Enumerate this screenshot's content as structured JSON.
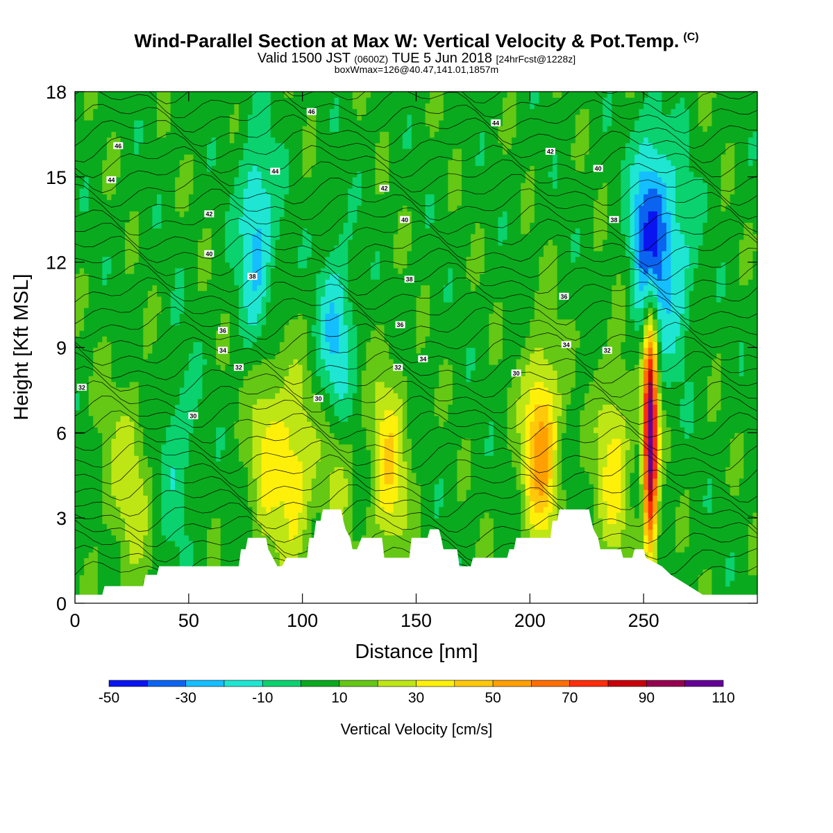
{
  "chart_data": {
    "type": "heatmap",
    "title": "Wind-Parallel Section at Max W: Vertical Velocity & Pot.Temp.",
    "title_mark": "(C)",
    "subtitle_valid": "Valid 1500 JST",
    "subtitle_utc": "(0600Z)",
    "subtitle_date": "TUE 5 Jun 2018",
    "subtitle_fcst": "[24hrFcst@1228z]",
    "subtitle_box": "boxWmax=126@40.47,141.01,1857m",
    "xlabel": "Distance [nm]",
    "ylabel": "Height [Kft MSL]",
    "xlim": [
      0,
      300
    ],
    "ylim": [
      0,
      18
    ],
    "x_ticks": [
      "0",
      "50",
      "100",
      "150",
      "200",
      "250"
    ],
    "y_ticks": [
      "0",
      "3",
      "6",
      "9",
      "12",
      "15",
      "18"
    ],
    "colorbar": {
      "label": "Vertical Velocity [cm/s]",
      "bounds": [
        -50,
        -40,
        -30,
        -20,
        -10,
        0,
        10,
        20,
        30,
        40,
        50,
        60,
        70,
        80,
        90,
        100,
        110
      ],
      "tick_labels": [
        "-50",
        "-30",
        "-10",
        "10",
        "30",
        "50",
        "70",
        "90",
        "110"
      ],
      "colors": [
        "#0a14f0",
        "#0a64f0",
        "#14beff",
        "#1ee6d2",
        "#0ad26e",
        "#0aaa1e",
        "#64c814",
        "#bee614",
        "#fff00a",
        "#ffc80a",
        "#ffa000",
        "#ff6e00",
        "#ff2d0a",
        "#c8000a",
        "#960050",
        "#640096"
      ]
    },
    "features": [
      {
        "x": 15,
        "z": 5.0,
        "w": 12
      },
      {
        "x": 25,
        "z": 4.0,
        "w": 25
      },
      {
        "x": 45,
        "z": 5.5,
        "w": -8
      },
      {
        "x": 85,
        "z": 5.5,
        "w": 32
      },
      {
        "x": 97,
        "z": 4.5,
        "w": 35
      },
      {
        "x": 115,
        "z": 5.5,
        "w": 28
      },
      {
        "x": 138,
        "z": 4.8,
        "w": 38
      },
      {
        "x": 205,
        "z": 5.5,
        "w": 55
      },
      {
        "x": 237,
        "z": 5.0,
        "w": 35
      },
      {
        "x": 253,
        "z": 6.0,
        "w": 110
      },
      {
        "x": 253,
        "z": 13.0,
        "w": -45
      },
      {
        "x": 115,
        "z": 8.8,
        "w": -28
      },
      {
        "x": 80,
        "z": 13.0,
        "w": -25
      },
      {
        "x": 265,
        "z": 12.0,
        "w": -15
      }
    ],
    "terrain": [
      [
        0,
        0.3
      ],
      [
        12,
        0.3
      ],
      [
        13,
        0.6
      ],
      [
        30,
        0.6
      ],
      [
        31,
        1.0
      ],
      [
        36,
        1.0
      ],
      [
        37,
        1.3
      ],
      [
        72,
        1.3
      ],
      [
        73,
        1.9
      ],
      [
        75,
        1.9
      ],
      [
        76,
        2.3
      ],
      [
        84,
        2.3
      ],
      [
        85,
        1.9
      ],
      [
        87,
        1.6
      ],
      [
        89,
        1.3
      ],
      [
        91,
        1.3
      ],
      [
        93,
        1.6
      ],
      [
        102,
        1.6
      ],
      [
        103,
        2.3
      ],
      [
        105,
        2.3
      ],
      [
        106,
        2.9
      ],
      [
        108,
        2.9
      ],
      [
        109,
        3.3
      ],
      [
        117,
        3.3
      ],
      [
        118,
        2.9
      ],
      [
        119,
        2.6
      ],
      [
        121,
        2.3
      ],
      [
        122,
        1.9
      ],
      [
        124,
        1.9
      ],
      [
        126,
        2.3
      ],
      [
        135,
        2.3
      ],
      [
        136,
        1.6
      ],
      [
        147,
        1.6
      ],
      [
        148,
        2.3
      ],
      [
        150,
        2.3
      ],
      [
        151,
        2.3
      ],
      [
        155,
        2.3
      ],
      [
        156,
        2.6
      ],
      [
        160,
        2.6
      ],
      [
        161,
        2.3
      ],
      [
        162,
        1.9
      ],
      [
        168,
        1.9
      ],
      [
        169,
        1.3
      ],
      [
        174,
        1.3
      ],
      [
        175,
        1.6
      ],
      [
        190,
        1.6
      ],
      [
        191,
        1.9
      ],
      [
        193,
        1.9
      ],
      [
        194,
        2.3
      ],
      [
        209,
        2.3
      ],
      [
        210,
        2.9
      ],
      [
        212,
        2.9
      ],
      [
        213,
        3.3
      ],
      [
        226,
        3.3
      ],
      [
        227,
        2.9
      ],
      [
        228,
        2.6
      ],
      [
        230,
        2.3
      ],
      [
        231,
        1.9
      ],
      [
        240,
        1.9
      ],
      [
        241,
        1.6
      ],
      [
        245,
        1.6
      ],
      [
        246,
        1.9
      ],
      [
        250,
        1.9
      ],
      [
        251,
        1.6
      ],
      [
        258,
        1.3
      ],
      [
        262,
        1.0
      ],
      [
        270,
        0.6
      ],
      [
        276,
        0.3
      ],
      [
        300,
        0.3
      ]
    ],
    "theta_labels": [
      {
        "text": "46",
        "x": 19,
        "z": 16.1
      },
      {
        "text": "44",
        "x": 16,
        "z": 14.9
      },
      {
        "text": "46",
        "x": 104,
        "z": 17.3
      },
      {
        "text": "44",
        "x": 88,
        "z": 15.2
      },
      {
        "text": "42",
        "x": 59,
        "z": 13.7
      },
      {
        "text": "40",
        "x": 59,
        "z": 12.3
      },
      {
        "text": "38",
        "x": 78,
        "z": 11.5
      },
      {
        "text": "36",
        "x": 65,
        "z": 9.6
      },
      {
        "text": "34",
        "x": 65,
        "z": 8.9
      },
      {
        "text": "32",
        "x": 72,
        "z": 8.3
      },
      {
        "text": "32",
        "x": 3,
        "z": 7.6
      },
      {
        "text": "30",
        "x": 52,
        "z": 6.6
      },
      {
        "text": "30",
        "x": 107,
        "z": 7.2
      },
      {
        "text": "42",
        "x": 136,
        "z": 14.6
      },
      {
        "text": "40",
        "x": 145,
        "z": 13.5
      },
      {
        "text": "38",
        "x": 147,
        "z": 11.4
      },
      {
        "text": "36",
        "x": 143,
        "z": 9.8
      },
      {
        "text": "34",
        "x": 153,
        "z": 8.6
      },
      {
        "text": "32",
        "x": 142,
        "z": 8.3
      },
      {
        "text": "44",
        "x": 185,
        "z": 16.9
      },
      {
        "text": "42",
        "x": 209,
        "z": 15.9
      },
      {
        "text": "40",
        "x": 230,
        "z": 15.3
      },
      {
        "text": "38",
        "x": 237,
        "z": 13.5
      },
      {
        "text": "36",
        "x": 215,
        "z": 10.8
      },
      {
        "text": "34",
        "x": 216,
        "z": 9.1
      },
      {
        "text": "32",
        "x": 234,
        "z": 8.9
      },
      {
        "text": "30",
        "x": 194,
        "z": 8.1
      }
    ]
  }
}
